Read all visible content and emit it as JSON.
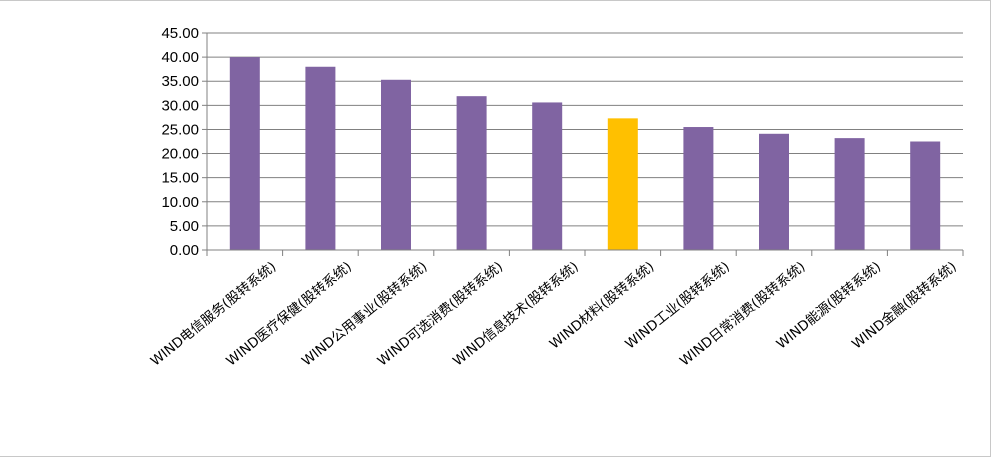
{
  "chart_data": {
    "type": "bar",
    "categories": [
      "WIND电信服务(股转系统)",
      "WIND医疗保健(股转系统)",
      "WIND公用事业(股转系统)",
      "WIND可选消费(股转系统)",
      "WIND信息技术(股转系统)",
      "WIND材料(股转系统)",
      "WIND工业(股转系统)",
      "WIND日常消费(股转系统)",
      "WIND能源(股转系统)",
      "WIND金融(股转系统)"
    ],
    "values": [
      40.0,
      38.0,
      35.3,
      31.9,
      30.6,
      27.3,
      25.5,
      24.1,
      23.2,
      22.5
    ],
    "ylim": [
      0,
      45
    ],
    "yticks": [
      "0.00",
      "5.00",
      "10.00",
      "15.00",
      "20.00",
      "25.00",
      "30.00",
      "35.00",
      "40.00",
      "45.00"
    ],
    "grid": true,
    "legend": "none",
    "colors": {
      "bar": "#8064a2",
      "highlight": "#ffc000",
      "highlight_category": "WIND材料(股转系统)",
      "gridline": "#808080",
      "axis": "#808080"
    }
  }
}
